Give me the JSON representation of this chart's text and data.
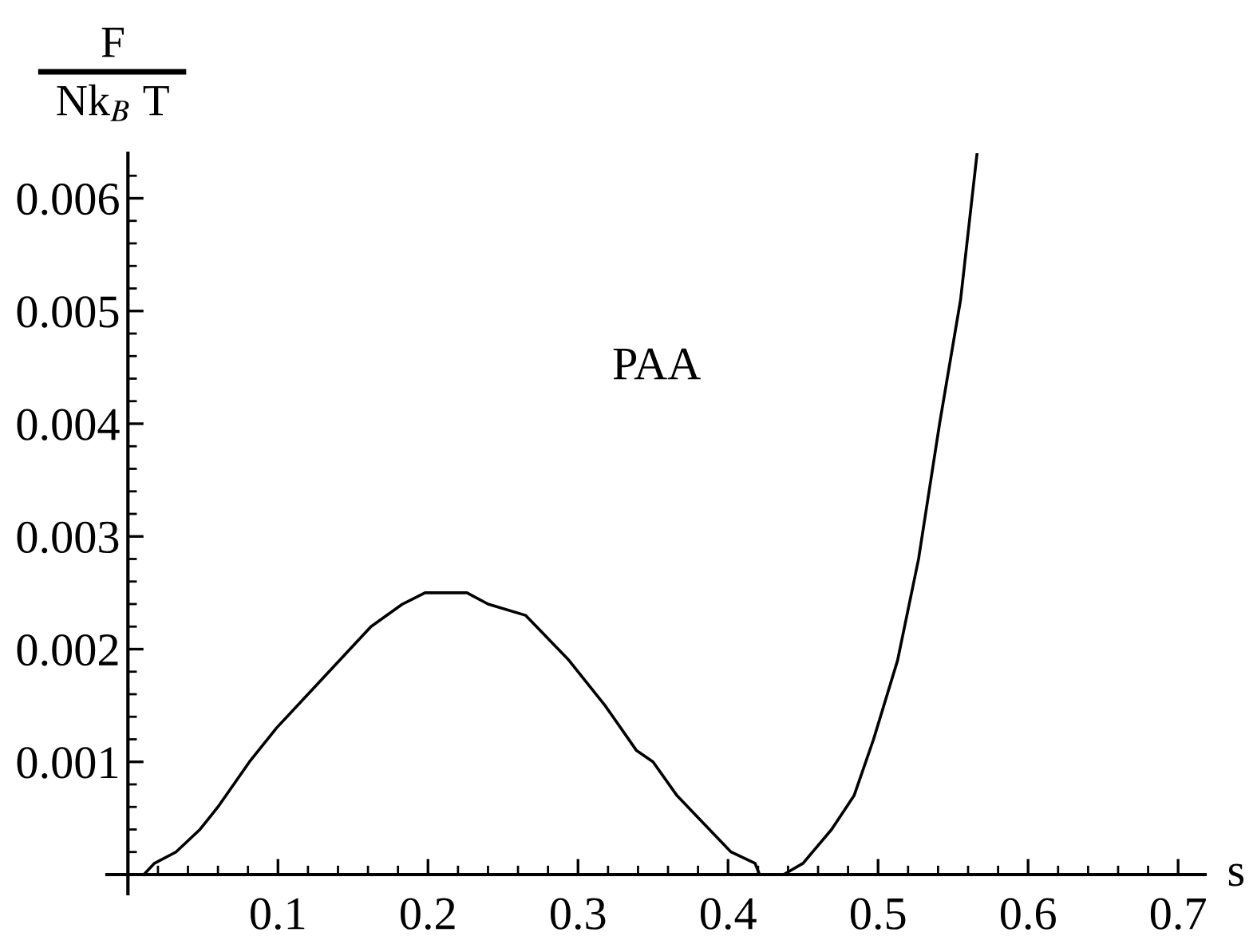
{
  "chart_data": {
    "type": "line",
    "xlabel": "s",
    "ylabel": "F\nNk$_{B}$ T",
    "annotations": [
      "PAA"
    ],
    "x": [
      0.0106,
      0.0177,
      0.032,
      0.048,
      0.06,
      0.081,
      0.099,
      0.12,
      0.148,
      0.162,
      0.183,
      0.198,
      0.212,
      0.226,
      0.24,
      0.265,
      0.294,
      0.318,
      0.339,
      0.35,
      0.366,
      0.402,
      0.418,
      0.421,
      0.437,
      0.45,
      0.469,
      0.484,
      0.497,
      0.513,
      0.527,
      0.541,
      0.555,
      0.566
    ],
    "series": [
      {
        "color": "#000000",
        "values": [
          0,
          0.0001,
          0.0002,
          0.0004,
          0.0006,
          0.001,
          0.0013,
          0.0016,
          0.002,
          0.0022,
          0.0024,
          0.0025,
          0.0025,
          0.0025,
          0.0024,
          0.0023,
          0.0019,
          0.0015,
          0.0011,
          0.001,
          0.0007,
          0.0002,
          0.0001,
          0,
          0,
          0.0001,
          0.0004,
          0.0007,
          0.0012,
          0.0019,
          0.0028,
          0.004,
          0.0051,
          0.0064
        ]
      }
    ],
    "xlim": [
      -0.014,
      0.718
    ],
    "ylim": [
      -0.00017,
      0.0064
    ],
    "xticks": [
      {
        "value": 0.02,
        "label": null
      },
      {
        "value": 0.04,
        "label": null
      },
      {
        "value": 0.06,
        "label": null
      },
      {
        "value": 0.08,
        "label": null
      },
      0.1,
      {
        "value": 0.12,
        "label": null
      },
      {
        "value": 0.14,
        "label": null
      },
      {
        "value": 0.16,
        "label": null
      },
      {
        "value": 0.18,
        "label": null
      },
      0.2,
      {
        "value": 0.22,
        "label": null
      },
      {
        "value": 0.24,
        "label": null
      },
      {
        "value": 0.26,
        "label": null
      },
      {
        "value": 0.28,
        "label": null
      },
      0.3,
      {
        "value": 0.32,
        "label": null
      },
      {
        "value": 0.34,
        "label": null
      },
      {
        "value": 0.36,
        "label": null
      },
      {
        "value": 0.38,
        "label": null
      },
      0.4,
      {
        "value": 0.42,
        "label": null
      },
      {
        "value": 0.44,
        "label": null
      },
      {
        "value": 0.46,
        "label": null
      },
      {
        "value": 0.48,
        "label": null
      },
      0.5,
      {
        "value": 0.52,
        "label": null
      },
      {
        "value": 0.54,
        "label": null
      },
      {
        "value": 0.56,
        "label": null
      },
      {
        "value": 0.58,
        "label": null
      },
      0.6,
      {
        "value": 0.62,
        "label": null
      },
      {
        "value": 0.64,
        "label": null
      },
      {
        "value": 0.66,
        "label": null
      },
      {
        "value": 0.68,
        "label": null
      },
      0.7
    ],
    "yticks": [
      {
        "value": 0.0002,
        "label": null
      },
      {
        "value": 0.0004,
        "label": null
      },
      {
        "value": 0.0006,
        "label": null
      },
      {
        "value": 0.0008,
        "label": null
      },
      0.001,
      {
        "value": 0.0012,
        "label": null
      },
      {
        "value": 0.0014,
        "label": null
      },
      {
        "value": 0.0016,
        "label": null
      },
      {
        "value": 0.0018,
        "label": null
      },
      0.002,
      {
        "value": 0.0022,
        "label": null
      },
      {
        "value": 0.0024,
        "label": null
      },
      {
        "value": 0.0026,
        "label": null
      },
      {
        "value": 0.0028,
        "label": null
      },
      0.003,
      {
        "value": 0.0032,
        "label": null
      },
      {
        "value": 0.0034,
        "label": null
      },
      {
        "value": 0.0036,
        "label": null
      },
      {
        "value": 0.0038,
        "label": null
      },
      0.004,
      {
        "value": 0.0042,
        "label": null
      },
      {
        "value": 0.0044,
        "label": null
      },
      {
        "value": 0.0046,
        "label": null
      },
      {
        "value": 0.0048,
        "label": null
      },
      0.005,
      {
        "value": 0.0052,
        "label": null
      },
      {
        "value": 0.0054,
        "label": null
      },
      {
        "value": 0.0056,
        "label": null
      },
      {
        "value": 0.0058,
        "label": null
      },
      0.006,
      {
        "value": 0.0062,
        "label": null
      }
    ],
    "grid": false,
    "legend": false,
    "marker": "none",
    "line_style": "solid"
  }
}
